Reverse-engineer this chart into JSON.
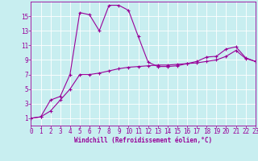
{
  "xlabel": "Windchill (Refroidissement éolien,°C)",
  "xlim": [
    0,
    23
  ],
  "ylim": [
    0,
    17
  ],
  "xticks": [
    0,
    1,
    2,
    3,
    4,
    5,
    6,
    7,
    8,
    9,
    10,
    11,
    12,
    13,
    14,
    15,
    16,
    17,
    18,
    19,
    20,
    21,
    22,
    23
  ],
  "yticks": [
    1,
    3,
    5,
    7,
    9,
    11,
    13,
    15
  ],
  "background_color": "#c8eef0",
  "grid_color": "#ffffff",
  "line_color": "#990099",
  "series1_x": [
    0,
    1,
    2,
    3,
    4,
    5,
    6,
    7,
    8,
    9,
    10,
    11,
    12,
    13,
    14,
    15,
    16,
    17,
    18,
    19,
    20,
    21,
    22,
    23
  ],
  "series1_y": [
    1,
    1.2,
    3.5,
    4.0,
    7.0,
    15.5,
    15.2,
    13.0,
    16.5,
    16.5,
    15.8,
    12.2,
    8.7,
    8.1,
    8.1,
    8.2,
    8.5,
    8.8,
    9.4,
    9.5,
    10.5,
    10.8,
    9.3,
    8.8
  ],
  "series2_x": [
    0,
    1,
    2,
    3,
    4,
    5,
    6,
    7,
    8,
    9,
    10,
    11,
    12,
    13,
    14,
    15,
    16,
    17,
    18,
    19,
    20,
    21,
    22,
    23
  ],
  "series2_y": [
    1,
    1.2,
    2.0,
    3.5,
    5.0,
    7.0,
    7.0,
    7.2,
    7.5,
    7.8,
    8.0,
    8.1,
    8.2,
    8.3,
    8.3,
    8.4,
    8.5,
    8.6,
    8.8,
    9.0,
    9.5,
    10.3,
    9.2,
    8.8
  ],
  "tick_fontsize": 5.5,
  "xlabel_fontsize": 5.5
}
